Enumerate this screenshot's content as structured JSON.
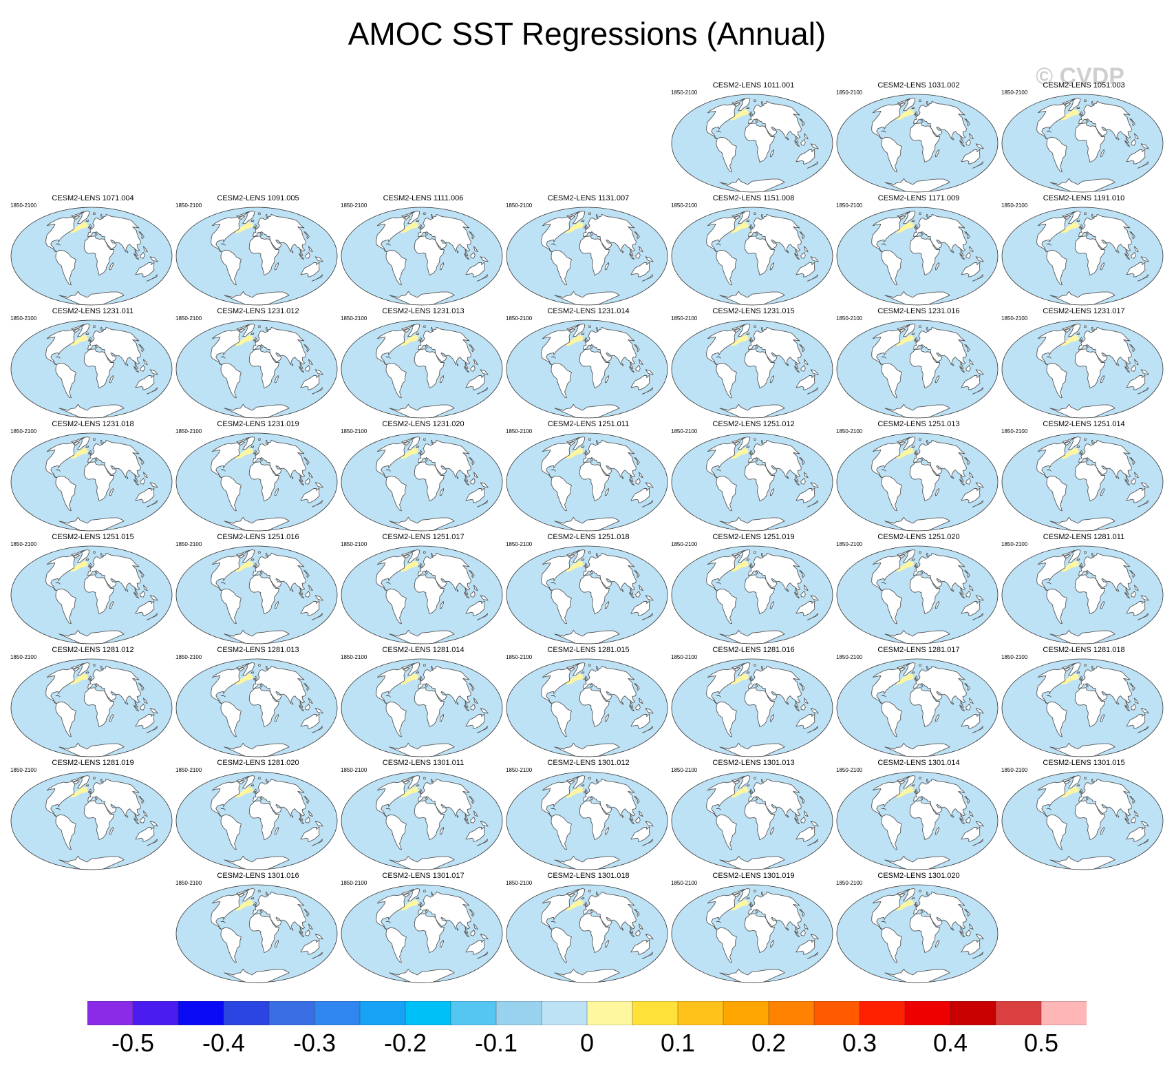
{
  "chart_data": {
    "type": "map-panels",
    "title": "AMOC SST Regressions (Annual)",
    "watermark": "© CVDP",
    "period": "1850-2100",
    "panels": [
      {
        "row": 0,
        "col": 4,
        "title": "CESM2-LENS 1011.001"
      },
      {
        "row": 0,
        "col": 5,
        "title": "CESM2-LENS 1031.002"
      },
      {
        "row": 0,
        "col": 6,
        "title": "CESM2-LENS 1051.003"
      },
      {
        "row": 1,
        "col": 0,
        "title": "CESM2-LENS 1071.004"
      },
      {
        "row": 1,
        "col": 1,
        "title": "CESM2-LENS 1091.005"
      },
      {
        "row": 1,
        "col": 2,
        "title": "CESM2-LENS 1111.006"
      },
      {
        "row": 1,
        "col": 3,
        "title": "CESM2-LENS 1131.007"
      },
      {
        "row": 1,
        "col": 4,
        "title": "CESM2-LENS 1151.008"
      },
      {
        "row": 1,
        "col": 5,
        "title": "CESM2-LENS 1171.009"
      },
      {
        "row": 1,
        "col": 6,
        "title": "CESM2-LENS 1191.010"
      },
      {
        "row": 2,
        "col": 0,
        "title": "CESM2-LENS 1231.011"
      },
      {
        "row": 2,
        "col": 1,
        "title": "CESM2-LENS 1231.012"
      },
      {
        "row": 2,
        "col": 2,
        "title": "CESM2-LENS 1231.013"
      },
      {
        "row": 2,
        "col": 3,
        "title": "CESM2-LENS 1231.014"
      },
      {
        "row": 2,
        "col": 4,
        "title": "CESM2-LENS 1231.015"
      },
      {
        "row": 2,
        "col": 5,
        "title": "CESM2-LENS 1231.016"
      },
      {
        "row": 2,
        "col": 6,
        "title": "CESM2-LENS 1231.017"
      },
      {
        "row": 3,
        "col": 0,
        "title": "CESM2-LENS 1231.018"
      },
      {
        "row": 3,
        "col": 1,
        "title": "CESM2-LENS 1231.019"
      },
      {
        "row": 3,
        "col": 2,
        "title": "CESM2-LENS 1231.020"
      },
      {
        "row": 3,
        "col": 3,
        "title": "CESM2-LENS 1251.011"
      },
      {
        "row": 3,
        "col": 4,
        "title": "CESM2-LENS 1251.012"
      },
      {
        "row": 3,
        "col": 5,
        "title": "CESM2-LENS 1251.013"
      },
      {
        "row": 3,
        "col": 6,
        "title": "CESM2-LENS 1251.014"
      },
      {
        "row": 4,
        "col": 0,
        "title": "CESM2-LENS 1251.015"
      },
      {
        "row": 4,
        "col": 1,
        "title": "CESM2-LENS 1251.016"
      },
      {
        "row": 4,
        "col": 2,
        "title": "CESM2-LENS 1251.017"
      },
      {
        "row": 4,
        "col": 3,
        "title": "CESM2-LENS 1251.018"
      },
      {
        "row": 4,
        "col": 4,
        "title": "CESM2-LENS 1251.019"
      },
      {
        "row": 4,
        "col": 5,
        "title": "CESM2-LENS 1251.020"
      },
      {
        "row": 4,
        "col": 6,
        "title": "CESM2-LENS 1281.011"
      },
      {
        "row": 5,
        "col": 0,
        "title": "CESM2-LENS 1281.012"
      },
      {
        "row": 5,
        "col": 1,
        "title": "CESM2-LENS 1281.013"
      },
      {
        "row": 5,
        "col": 2,
        "title": "CESM2-LENS 1281.014"
      },
      {
        "row": 5,
        "col": 3,
        "title": "CESM2-LENS 1281.015"
      },
      {
        "row": 5,
        "col": 4,
        "title": "CESM2-LENS 1281.016"
      },
      {
        "row": 5,
        "col": 5,
        "title": "CESM2-LENS 1281.017"
      },
      {
        "row": 5,
        "col": 6,
        "title": "CESM2-LENS 1281.018"
      },
      {
        "row": 6,
        "col": 0,
        "title": "CESM2-LENS 1281.019"
      },
      {
        "row": 6,
        "col": 1,
        "title": "CESM2-LENS 1281.020"
      },
      {
        "row": 6,
        "col": 2,
        "title": "CESM2-LENS 1301.011"
      },
      {
        "row": 6,
        "col": 3,
        "title": "CESM2-LENS 1301.012"
      },
      {
        "row": 6,
        "col": 4,
        "title": "CESM2-LENS 1301.013"
      },
      {
        "row": 6,
        "col": 5,
        "title": "CESM2-LENS 1301.014"
      },
      {
        "row": 6,
        "col": 6,
        "title": "CESM2-LENS 1301.015"
      },
      {
        "row": 7,
        "col": 1,
        "title": "CESM2-LENS 1301.016"
      },
      {
        "row": 7,
        "col": 2,
        "title": "CESM2-LENS 1301.017"
      },
      {
        "row": 7,
        "col": 3,
        "title": "CESM2-LENS 1301.018"
      },
      {
        "row": 7,
        "col": 4,
        "title": "CESM2-LENS 1301.019"
      },
      {
        "row": 7,
        "col": 5,
        "title": "CESM2-LENS 1301.020"
      }
    ],
    "colorbar": {
      "colors": [
        "#8a2be8",
        "#4a1cf0",
        "#0a0af5",
        "#2b45e2",
        "#3a6ee4",
        "#2f86ef",
        "#18a2f5",
        "#00c0f8",
        "#55c6f2",
        "#98d2ef",
        "#bde2f6",
        "#fff7a0",
        "#ffe13a",
        "#ffc21a",
        "#ffa600",
        "#ff8200",
        "#ff5a00",
        "#ff2000",
        "#ee0000",
        "#c80000",
        "#da4040",
        "#ffb6b6"
      ],
      "tick_labels": [
        "-0.5",
        "-0.4",
        "-0.3",
        "-0.2",
        "-0.1",
        "0",
        "0.1",
        "0.2",
        "0.3",
        "0.4",
        "0.5"
      ],
      "tick_positions": [
        1,
        3,
        5,
        7,
        9,
        11,
        13,
        15,
        17,
        19,
        21
      ]
    },
    "ocean_color": "#bde2f6",
    "anomaly_color": "#fff7a0",
    "land_color": "#ffffff",
    "coast_color": "#555555"
  }
}
